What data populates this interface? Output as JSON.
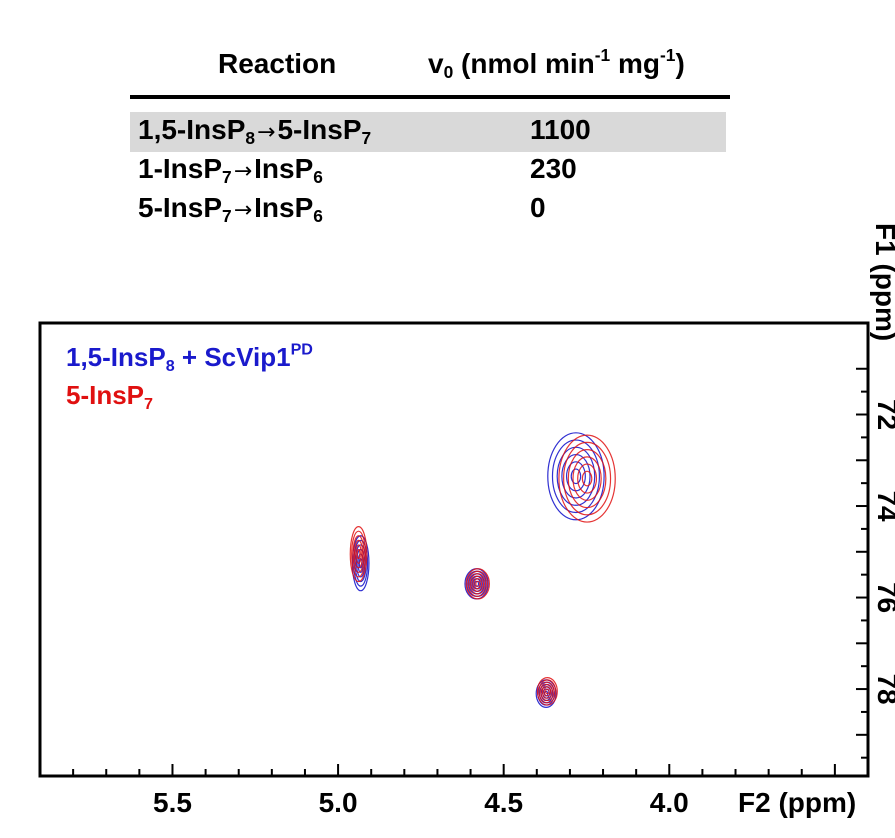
{
  "colors": {
    "blue": "#1a1acc",
    "red": "#e01010",
    "highlight": "#d9d9d9"
  },
  "table": {
    "header_reaction": "Reaction",
    "header_rate": "v0 (nmol min-1 mg-1)",
    "rows": [
      {
        "reactant": "1,5-InsP8",
        "product": "5-InsP7",
        "value": "1100",
        "highlighted": true
      },
      {
        "reactant": "1-InsP7",
        "product": "InsP6",
        "value": "230",
        "highlighted": false
      },
      {
        "reactant": "5-InsP7",
        "product": "InsP6",
        "value": "0",
        "highlighted": false
      }
    ]
  },
  "chart_data": {
    "type": "scatter",
    "subtype": "2D NMR contour overlay",
    "xlabel": "F2 (ppm)",
    "ylabel": "F1 (ppm)",
    "xlim": [
      5.9,
      3.4
    ],
    "ylim": [
      70.0,
      79.9
    ],
    "x_reversed": true,
    "y_reversed": true,
    "x_ticks": [
      "5.5",
      "5.0",
      "4.5",
      "4.0"
    ],
    "y_ticks": [
      "72",
      "74",
      "76",
      "78"
    ],
    "legend_position": "top-left",
    "series": [
      {
        "name": "1,5-InsP8 + ScVip1PD",
        "color": "blue",
        "points": [
          {
            "x": 4.93,
            "y": 75.25
          },
          {
            "x": 4.58,
            "y": 75.7
          },
          {
            "x": 4.28,
            "y": 73.35
          },
          {
            "x": 4.37,
            "y": 78.1
          }
        ]
      },
      {
        "name": "5-InsP7",
        "color": "red",
        "points": [
          {
            "x": 4.94,
            "y": 75.05
          },
          {
            "x": 4.58,
            "y": 75.7
          },
          {
            "x": 4.25,
            "y": 73.4
          },
          {
            "x": 4.37,
            "y": 78.05
          }
        ]
      }
    ]
  }
}
